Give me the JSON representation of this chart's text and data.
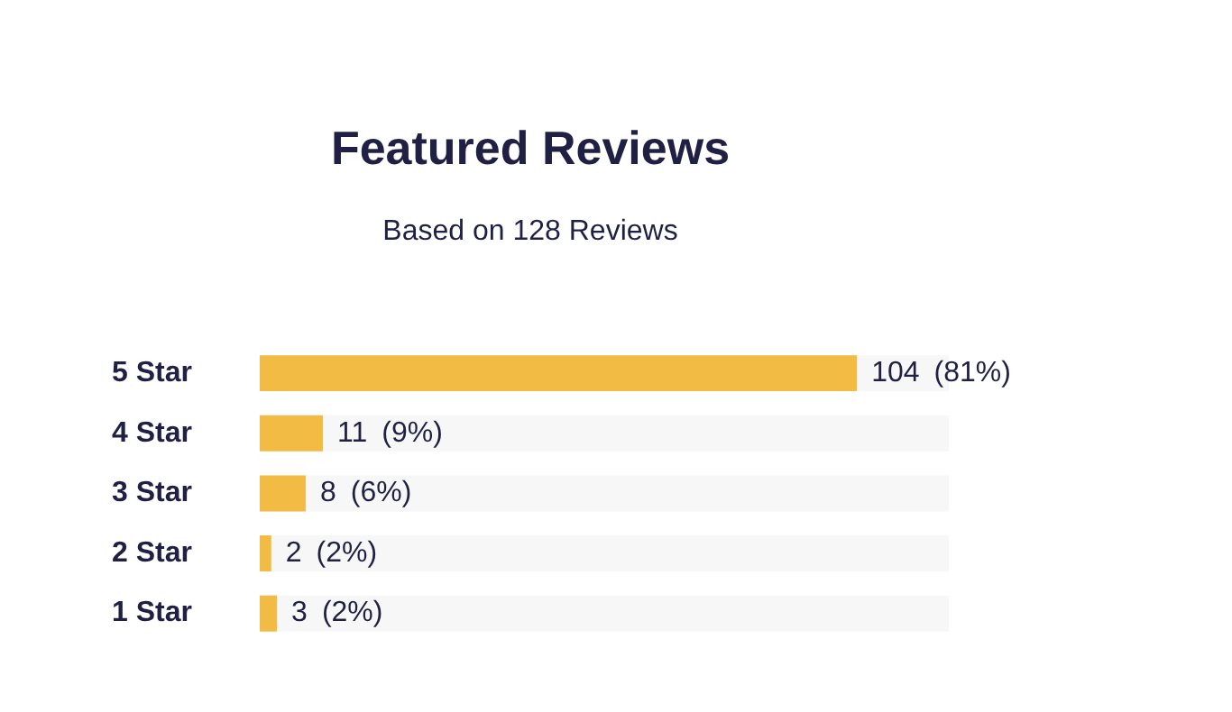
{
  "chart_data": {
    "type": "bar",
    "orientation": "horizontal",
    "title": "Featured Reviews",
    "subtitle": "Based on 128 Reviews",
    "categories": [
      "5 Star",
      "4 Star",
      "3 Star",
      "2 Star",
      "1 Star"
    ],
    "values": [
      104,
      11,
      8,
      2,
      3
    ],
    "value_labels": [
      "104  (81%)",
      "11  (9%)",
      "8  (6%)",
      "2  (2%)",
      "3  (2%)"
    ],
    "color": "#f2bb44",
    "tick_labels": "y"
  }
}
